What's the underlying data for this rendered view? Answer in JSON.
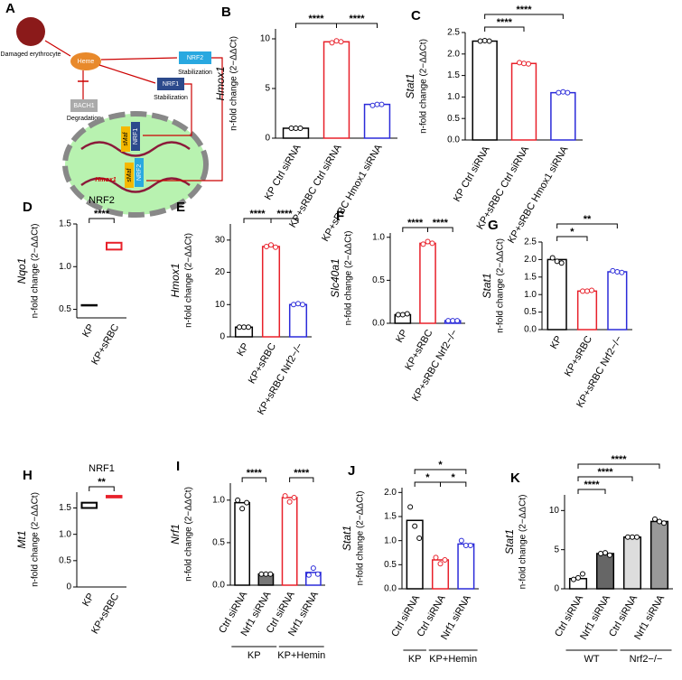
{
  "diagram": {
    "panel": "A",
    "erythrocyte": "Damaged erythrocyte",
    "heme": "Heme",
    "nrf2": "NRF2",
    "nrf1": "NRF1",
    "stab1": "Stabilization",
    "stab2": "Stabilization",
    "bach1": "BACH1",
    "degradation": "Degradation",
    "smaf1": "sMaf",
    "nrf1_dna": "NRF1",
    "hmox1": "Hmox1",
    "smaf2": "sMaf",
    "nrf2_dna": "NRF2"
  },
  "chart_data": [
    {
      "type": "bar",
      "panel": "B",
      "gene": "Hmox1",
      "ylabel": "n-fold change (2−ΔΔCt)",
      "categories": [
        "KP Ctrl siRNA",
        "KP+sRBC Ctrl siRNA",
        "KP+sRBC Hmox1 siRNA"
      ],
      "values": [
        1,
        9.7,
        3.4
      ],
      "points": [
        [
          1,
          1,
          1
        ],
        [
          9.6,
          9.8,
          9.7
        ],
        [
          3.3,
          3.4,
          3.4
        ]
      ],
      "colors": [
        "#000000",
        "#e8202a",
        "#2b2bd9"
      ],
      "fills": [
        "#ffffff",
        "#ffffff",
        "#ffffff"
      ],
      "ylim": [
        0,
        11
      ],
      "yticks": [
        0,
        5,
        10
      ],
      "annotations": [
        "****",
        "****"
      ]
    },
    {
      "type": "bar",
      "panel": "C",
      "gene": "Stat1",
      "ylabel": "n-fold change (2−ΔΔCt)",
      "categories": [
        "KP Ctrl siRNA",
        "KP+sRBC Ctrl siRNA",
        "KP+sRBC Hmox1 siRNA"
      ],
      "values": [
        2.3,
        1.78,
        1.1
      ],
      "points": [
        [
          2.3,
          2.31,
          2.3
        ],
        [
          1.8,
          1.78,
          1.77
        ],
        [
          1.1,
          1.12,
          1.1
        ]
      ],
      "colors": [
        "#000000",
        "#e8202a",
        "#2b2bd9"
      ],
      "fills": [
        "#ffffff",
        "#ffffff",
        "#ffffff"
      ],
      "ylim": [
        0,
        2.5
      ],
      "yticks": [
        {
          "value": 0,
          "label": "0.0"
        },
        {
          "value": 0.5,
          "label": "0.5"
        },
        {
          "value": 1,
          "label": "1.0"
        },
        {
          "value": 1.5,
          "label": "1.5"
        },
        {
          "value": 2,
          "label": "2.0"
        },
        {
          "value": 2.5,
          "label": "2.5"
        }
      ],
      "annotations": [
        "****",
        "****",
        "****"
      ]
    },
    {
      "type": "floating",
      "panel": "D",
      "title": "NRF2",
      "gene": "Nqo1",
      "ylabel": "n-fold change (2−ΔΔCt)",
      "categories": [
        "KP",
        "KP+sRBC"
      ],
      "low": [
        0.55,
        1.2
      ],
      "high": [
        0.55,
        1.28
      ],
      "colors": [
        "#000000",
        "#e8202a"
      ],
      "ylim": [
        0.4,
        1.5
      ],
      "yticks": [
        {
          "value": 0.5,
          "label": "0.5"
        },
        {
          "value": 1,
          "label": "1.0"
        },
        {
          "value": 1.5,
          "label": "1.5"
        }
      ],
      "annotations": [
        "****"
      ]
    },
    {
      "type": "bar",
      "panel": "E",
      "gene": "Hmox1",
      "ylabel": "n-fold change (2−ΔΔCt)",
      "categories": [
        "KP",
        "KP+sRBC",
        "KP+sRBC Nrf2−/−"
      ],
      "values": [
        3,
        28,
        10
      ],
      "points": [
        [
          3,
          3,
          3
        ],
        [
          28,
          28.5,
          27.8
        ],
        [
          10,
          10.3,
          10
        ]
      ],
      "colors": [
        "#000000",
        "#e8202a",
        "#2b2bd9"
      ],
      "fills": [
        "#ffffff",
        "#ffffff",
        "#ffffff"
      ],
      "ylim": [
        0,
        35
      ],
      "yticks": [
        0,
        10,
        20,
        30
      ],
      "annotations": [
        "****",
        "****"
      ]
    },
    {
      "type": "bar",
      "panel": "F",
      "gene": "Slc40a1",
      "ylabel": "n-fold change (2−ΔΔCt)",
      "categories": [
        "KP",
        "KP+sRBC",
        "KP+sRBC Nrf2−/−"
      ],
      "values": [
        0.1,
        0.93,
        0.03
      ],
      "points": [
        [
          0.1,
          0.1,
          0.11
        ],
        [
          0.92,
          0.95,
          0.93
        ],
        [
          0.03,
          0.03,
          0.03
        ]
      ],
      "colors": [
        "#000000",
        "#e8202a",
        "#2b2bd9"
      ],
      "fills": [
        "#ffffff",
        "#ffffff",
        "#ffffff"
      ],
      "ylim": [
        0,
        1.05
      ],
      "yticks": [
        {
          "value": 0,
          "label": "0.0"
        },
        {
          "value": 0.5,
          "label": "0.5"
        },
        {
          "value": 1,
          "label": "1.0"
        }
      ],
      "annotations": [
        "****",
        "****"
      ]
    },
    {
      "type": "bar",
      "panel": "G",
      "gene": "Stat1",
      "ylabel": "n-fold change (2−ΔΔCt)",
      "categories": [
        "KP",
        "KP+sRBC",
        "KP+sRBC Nrf2−/−"
      ],
      "values": [
        2.0,
        1.1,
        1.65
      ],
      "points": [
        [
          2.05,
          1.95,
          1.9
        ],
        [
          1.1,
          1.1,
          1.12
        ],
        [
          1.68,
          1.65,
          1.63
        ]
      ],
      "colors": [
        "#000000",
        "#e8202a",
        "#2b2bd9"
      ],
      "fills": [
        "#ffffff",
        "#ffffff",
        "#ffffff"
      ],
      "ylim": [
        0,
        2.5
      ],
      "yticks": [
        {
          "value": 0,
          "label": "0.0"
        },
        {
          "value": 0.5,
          "label": "0.5"
        },
        {
          "value": 1,
          "label": "1.0"
        },
        {
          "value": 1.5,
          "label": "1.5"
        },
        {
          "value": 2,
          "label": "2.0"
        },
        {
          "value": 2.5,
          "label": "2.5"
        }
      ],
      "annotations": [
        "*",
        "**"
      ]
    },
    {
      "type": "floating",
      "panel": "H",
      "title": "NRF1",
      "gene": "Mt1",
      "ylabel": "n-fold change (2−ΔΔCt)",
      "categories": [
        "KP",
        "KP+sRBC"
      ],
      "low": [
        1.5,
        1.7
      ],
      "high": [
        1.6,
        1.73
      ],
      "colors": [
        "#000000",
        "#e8202a"
      ],
      "ylim": [
        0,
        1.8
      ],
      "yticks": [
        {
          "value": 0,
          "label": "0"
        },
        {
          "value": 0.5,
          "label": "0.5"
        },
        {
          "value": 1,
          "label": "1.0"
        },
        {
          "value": 1.5,
          "label": "1.5"
        }
      ],
      "annotations": [
        "**"
      ]
    },
    {
      "type": "bar",
      "panel": "I",
      "gene": "Nrf1",
      "ylabel": "n-fold change (2−ΔΔCt)",
      "categories": [
        "Ctrl siRNA",
        "Nrf1 siRNA",
        "Ctrl siRNA",
        "Nrf1 siRNA"
      ],
      "groups": [
        "KP",
        "KP+Hemin"
      ],
      "values": [
        0.97,
        0.13,
        1.03,
        0.15
      ],
      "points": [
        [
          1.0,
          0.9,
          0.97
        ],
        [
          0.13,
          0.13,
          0.13
        ],
        [
          1.05,
          0.98,
          1.03
        ],
        [
          0.12,
          0.2,
          0.13
        ]
      ],
      "colors": [
        "#000000",
        "#000000",
        "#e8202a",
        "#2b2bd9"
      ],
      "fills": [
        "#ffffff",
        "#777777",
        "#ffffff",
        "#ffffff"
      ],
      "ylim": [
        0,
        1.2
      ],
      "yticks": [
        {
          "value": 0,
          "label": "0.0"
        },
        {
          "value": 0.5,
          "label": "0.5"
        },
        {
          "value": 1,
          "label": "1.0"
        }
      ],
      "annotations": [
        "****",
        "****"
      ]
    },
    {
      "type": "bar",
      "panel": "J",
      "gene": "Stat1",
      "ylabel": "n-fold change (2−ΔΔCt)",
      "categories": [
        "Ctrl siRNA",
        "Ctrl siRNA",
        "Nrf1 siRNA"
      ],
      "groups": [
        "KP",
        "KP+Hemin"
      ],
      "values": [
        1.42,
        0.6,
        0.93
      ],
      "points": [
        [
          1.7,
          1.3,
          1.05
        ],
        [
          0.65,
          0.52,
          0.6
        ],
        [
          1.0,
          0.9,
          0.9
        ]
      ],
      "colors": [
        "#000000",
        "#e8202a",
        "#2b2bd9"
      ],
      "fills": [
        "#ffffff",
        "#ffffff",
        "#ffffff"
      ],
      "ylim": [
        0,
        2.1
      ],
      "yticks": [
        {
          "value": 0,
          "label": "0.0"
        },
        {
          "value": 0.5,
          "label": "0.5"
        },
        {
          "value": 1,
          "label": "1.0"
        },
        {
          "value": 1.5,
          "label": "1.5"
        },
        {
          "value": 2,
          "label": "2.0"
        }
      ],
      "annotations": [
        "*",
        "*",
        "*"
      ]
    },
    {
      "type": "bar",
      "panel": "K",
      "gene": "Stat1",
      "ylabel": "n-fold change (2−ΔΔCt)",
      "categories": [
        "Ctrl siRNA",
        "Nrf1 siRNA",
        "Ctrl siRNA",
        "Nrf1 siRNA"
      ],
      "groups": [
        "WT",
        "Nrf2−/−"
      ],
      "values": [
        1.3,
        4.5,
        6.6,
        8.6
      ],
      "points": [
        [
          1.2,
          1.4,
          1.9
        ],
        [
          4.5,
          4.6,
          4.3
        ],
        [
          6.6,
          6.6,
          6.6
        ],
        [
          8.9,
          8.6,
          8.4
        ]
      ],
      "colors": [
        "#000000",
        "#000000",
        "#000000",
        "#000000"
      ],
      "fills": [
        "#ffffff",
        "#666666",
        "#dddddd",
        "#999999"
      ],
      "ylim": [
        0,
        12
      ],
      "yticks": [
        0,
        5,
        10
      ],
      "annotations": [
        "****",
        "****",
        "****"
      ]
    }
  ]
}
